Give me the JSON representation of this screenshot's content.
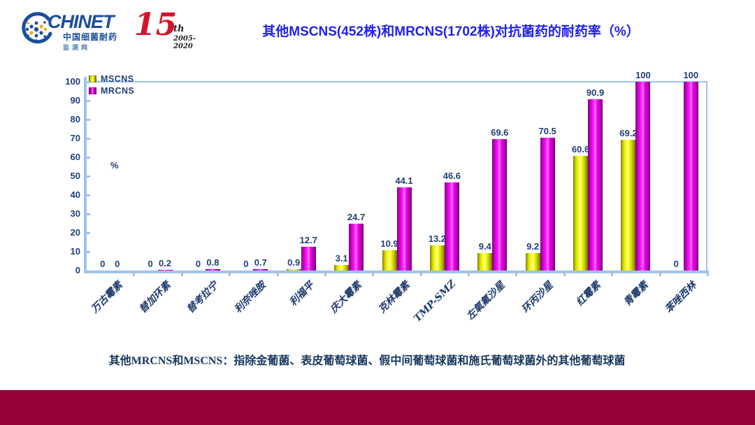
{
  "header": {
    "logo": {
      "brand": "CHINET",
      "tagline": "中国细菌耐药",
      "tagline2": "监测网"
    },
    "anniversary": {
      "number": "15",
      "suffix": "th",
      "years": "2005-2020"
    },
    "title": "其他MSCNS(452株)和MRCNS(1702株)对抗菌药的耐药率（%）"
  },
  "chart_data": {
    "type": "bar",
    "title": "其他MSCNS(452株)和MRCNS(1702株)对抗菌药的耐药率（%）",
    "xlabel": "",
    "ylabel": "%",
    "ylim": [
      0,
      100
    ],
    "ytick_step": 10,
    "grid": false,
    "legend_position": "top-left-inside",
    "categories": [
      "万古霉素",
      "替加环素",
      "替考拉宁",
      "利奈唑胺",
      "利福平",
      "庆大霉素",
      "克林霉素",
      "TMP-SMZ",
      "左氧氟沙星",
      "环丙沙星",
      "红霉素",
      "青霉素",
      "苯唑西林"
    ],
    "series": [
      {
        "name": "MSCNS",
        "color": "#FFFF00",
        "values": [
          0,
          0,
          0,
          0,
          0.9,
          3.1,
          10.9,
          13.2,
          9.4,
          9.2,
          60.6,
          69.2,
          0
        ]
      },
      {
        "name": "MRCNS",
        "color": "#FF00FF",
        "values": [
          0,
          0.2,
          0.8,
          0.7,
          12.7,
          24.7,
          44.1,
          46.6,
          69.6,
          70.5,
          90.9,
          100,
          100
        ]
      }
    ]
  },
  "footnote": "其他MRCNS和MSCNS：指除金葡菌、表皮葡萄球菌、假中间葡萄球菌和施氏葡萄球菌外的其他葡萄球菌",
  "colors": {
    "title_blue": "#2121EC",
    "axis_blue": "#9DC3E6",
    "label_navy": "#1F3F77",
    "mscns_yellow": "#FFFF00",
    "mrcns_magenta": "#FF00FF",
    "footer_band_red": "#990238",
    "logo_blue": "#1B4E9B",
    "logo_red": "#D6112B"
  }
}
